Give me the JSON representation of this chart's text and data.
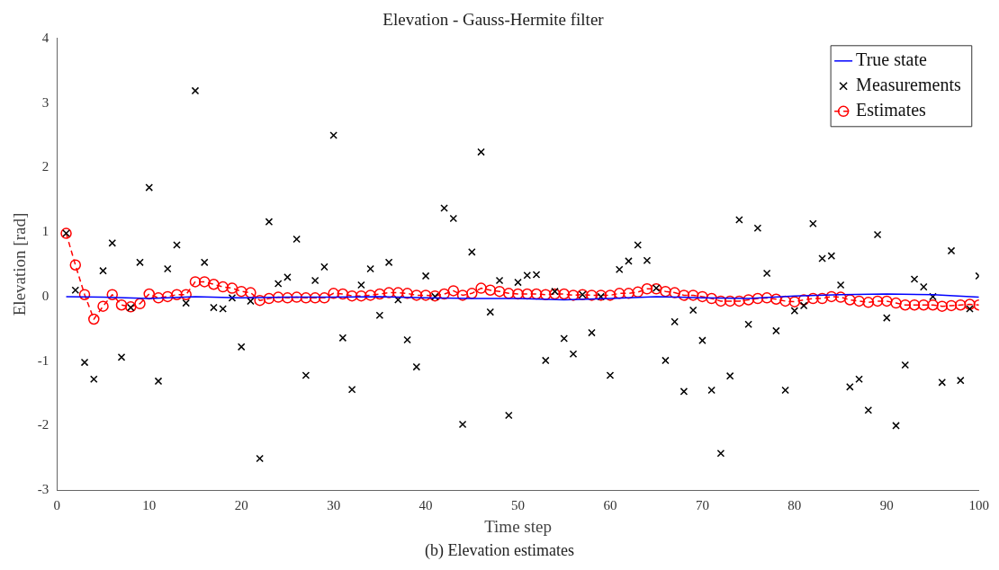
{
  "chart_data": {
    "type": "scatter",
    "title": "Elevation - Gauss-Hermite filter",
    "xlabel": "Time step",
    "ylabel": "Elevation [rad]",
    "annotations": [
      "(b) Elevation estimates"
    ],
    "xlim": [
      0,
      100
    ],
    "xticks": [
      0,
      10,
      20,
      30,
      40,
      50,
      60,
      70,
      80,
      90,
      100
    ],
    "ylim": [
      -3,
      4
    ],
    "yticks": [
      -3,
      -2,
      -1,
      0,
      1,
      2,
      3,
      4
    ],
    "grid": false,
    "legend": "top right",
    "series": [
      {
        "name": "True state",
        "type": "line",
        "color": "#0000ff",
        "marker": "none",
        "line_style": "solid",
        "x": [
          1,
          5,
          10,
          15,
          20,
          25,
          30,
          35,
          40,
          45,
          50,
          55,
          60,
          65,
          70,
          75,
          80,
          85,
          90,
          95,
          100
        ],
        "values": [
          0,
          -0.01,
          -0.03,
          0,
          -0.02,
          -0.01,
          -0.01,
          0,
          -0.02,
          -0.03,
          -0.03,
          -0.05,
          -0.03,
          0,
          -0.02,
          -0.03,
          0.01,
          0.03,
          0.04,
          0.03,
          -0.01
        ]
      },
      {
        "name": "Measurements",
        "type": "scatter",
        "color": "#000000",
        "marker": "cross",
        "x": [
          1,
          2,
          3,
          4,
          5,
          6,
          7,
          8,
          9,
          10,
          11,
          12,
          13,
          14,
          15,
          16,
          17,
          18,
          19,
          20,
          21,
          22,
          23,
          24,
          25,
          26,
          27,
          28,
          29,
          30,
          31,
          32,
          33,
          34,
          35,
          36,
          37,
          38,
          39,
          40,
          41,
          42,
          43,
          44,
          45,
          46,
          47,
          48,
          49,
          50,
          51,
          52,
          53,
          54,
          55,
          56,
          57,
          58,
          59,
          60,
          61,
          62,
          63,
          64,
          65,
          66,
          67,
          68,
          69,
          70,
          71,
          72,
          73,
          74,
          75,
          76,
          77,
          78,
          79,
          80,
          81,
          82,
          83,
          84,
          85,
          86,
          87,
          88,
          89,
          90,
          91,
          92,
          93,
          94,
          95,
          96,
          97,
          98,
          99,
          100
        ],
        "values": [
          0.98,
          0.1,
          -1.02,
          -1.28,
          0.4,
          0.83,
          -0.94,
          -0.17,
          0.53,
          1.69,
          -1.31,
          0.43,
          0.8,
          -0.1,
          3.19,
          0.53,
          -0.17,
          -0.19,
          -0.02,
          -0.78,
          -0.07,
          -2.51,
          1.16,
          0.2,
          0.3,
          0.89,
          -1.22,
          0.25,
          0.46,
          2.5,
          -0.64,
          -1.44,
          0.18,
          0.43,
          -0.29,
          0.53,
          -0.05,
          -0.67,
          -1.09,
          0.32,
          0,
          1.37,
          1.21,
          -1.98,
          0.69,
          2.24,
          -0.24,
          0.25,
          -1.84,
          0.22,
          0.33,
          0.34,
          -0.99,
          0.08,
          -0.65,
          -0.89,
          0.03,
          -0.56,
          0,
          -1.22,
          0.42,
          0.55,
          0.8,
          0.56,
          0.13,
          -0.99,
          -0.39,
          -1.47,
          -0.21,
          -0.68,
          -1.45,
          -2.43,
          -1.23,
          1.19,
          -0.43,
          1.06,
          0.36,
          -0.53,
          -1.45,
          -0.22,
          -0.14,
          1.13,
          0.59,
          0.63,
          0.18,
          -1.4,
          -1.28,
          -1.76,
          0.96,
          -0.33,
          -2,
          -1.06,
          0.27,
          0.15,
          0,
          -1.33,
          0.71,
          -1.3,
          -0.19,
          0.32
        ]
      },
      {
        "name": "Estimates",
        "type": "line",
        "color": "#ff0000",
        "marker": "circle",
        "line_style": "dashed",
        "x": [
          1,
          2,
          3,
          4,
          5,
          6,
          7,
          8,
          9,
          10,
          11,
          12,
          13,
          14,
          15,
          16,
          17,
          18,
          19,
          20,
          21,
          22,
          23,
          24,
          25,
          26,
          27,
          28,
          29,
          30,
          31,
          32,
          33,
          34,
          35,
          36,
          37,
          38,
          39,
          40,
          41,
          42,
          43,
          44,
          45,
          46,
          47,
          48,
          49,
          50,
          51,
          52,
          53,
          54,
          55,
          56,
          57,
          58,
          59,
          60,
          61,
          62,
          63,
          64,
          65,
          66,
          67,
          68,
          69,
          70,
          71,
          72,
          73,
          74,
          75,
          76,
          77,
          78,
          79,
          80,
          81,
          82,
          83,
          84,
          85,
          86,
          87,
          88,
          89,
          90,
          91,
          92,
          93,
          94,
          95,
          96,
          97,
          98,
          99,
          100
        ],
        "values": [
          0.98,
          0.49,
          0.03,
          -0.35,
          -0.15,
          0.03,
          -0.13,
          -0.16,
          -0.11,
          0.04,
          -0.02,
          0,
          0.03,
          0.03,
          0.23,
          0.23,
          0.19,
          0.15,
          0.13,
          0.08,
          0.06,
          -0.06,
          -0.03,
          -0.01,
          -0.02,
          -0.01,
          -0.02,
          -0.02,
          -0.02,
          0.05,
          0.04,
          0.01,
          0.01,
          0.02,
          0.04,
          0.06,
          0.06,
          0.05,
          0.02,
          0.02,
          0.01,
          0.04,
          0.09,
          0.02,
          0.05,
          0.13,
          0.1,
          0.08,
          0.05,
          0.04,
          0.04,
          0.04,
          0.03,
          0.04,
          0.04,
          0.02,
          0.03,
          0.02,
          0.02,
          0.02,
          0.05,
          0.05,
          0.07,
          0.12,
          0.12,
          0.08,
          0.06,
          0.02,
          0.02,
          0,
          -0.03,
          -0.07,
          -0.07,
          -0.07,
          -0.05,
          -0.03,
          -0.02,
          -0.04,
          -0.07,
          -0.08,
          -0.05,
          -0.03,
          -0.03,
          0,
          -0.01,
          -0.05,
          -0.07,
          -0.09,
          -0.07,
          -0.07,
          -0.1,
          -0.13,
          -0.13,
          -0.13,
          -0.13,
          -0.15,
          -0.14,
          -0.13,
          -0.12,
          -0.13
        ]
      }
    ]
  }
}
